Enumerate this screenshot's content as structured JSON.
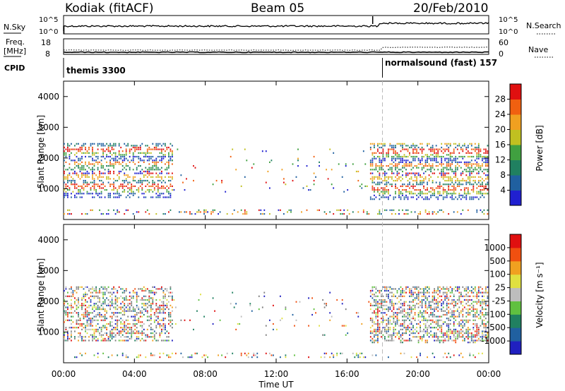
{
  "header": {
    "station": "Kodiak (fitACF)",
    "beam": "Beam 05",
    "date": "20/Feb/2010"
  },
  "top_panel": {
    "left_label": "N.Sky",
    "left_ticks": [
      "10^5",
      "10^0"
    ],
    "right_label": "N.Search",
    "right_ticks": [
      "10^5",
      "10^0"
    ]
  },
  "freq_panel": {
    "left_label_1": "Freq.",
    "left_label_2": "[MHz]",
    "left_ticks": [
      "18",
      "8"
    ],
    "right_label": "Nave",
    "right_ticks": [
      "60",
      "0"
    ]
  },
  "cpid_panel": {
    "label": "CPID",
    "segments": [
      {
        "name": "themis 3300",
        "start_hour": 0
      },
      {
        "name": "normalsound (fast) 157",
        "start_hour": 18
      }
    ]
  },
  "x_axis": {
    "label": "Time UT",
    "ticks": [
      "00:00",
      "04:00",
      "08:00",
      "12:00",
      "16:00",
      "20:00",
      "00:00"
    ],
    "range_hours": [
      0,
      24
    ]
  },
  "colors": {
    "power_scale": [
      "#2020d0",
      "#2060a0",
      "#208060",
      "#40a040",
      "#c0c020",
      "#f0a020",
      "#f06010",
      "#e01010"
    ],
    "velocity_scale": [
      "#e01010",
      "#f05010",
      "#f0a020",
      "#e0e040",
      "#bdbdbd",
      "#60c040",
      "#208060",
      "#2060a0",
      "#2020c0"
    ],
    "ground_scatter": "#808080",
    "axis": "#000000"
  },
  "chart_data": [
    {
      "type": "heatmap",
      "name": "power",
      "ylabel": "Slant Range [km]",
      "yticks": [
        "1000",
        "2000",
        "3000",
        "4000"
      ],
      "ylim": [
        0,
        4500
      ],
      "xlim": [
        0,
        24
      ],
      "colorbar": {
        "label": "Power [dB]",
        "ticks": [
          "4",
          "8",
          "12",
          "16",
          "20",
          "24",
          "28"
        ]
      },
      "scatter_regions": [
        {
          "t0": 0.0,
          "t1": 6.1,
          "r0": 700,
          "r1": 2500,
          "density": 0.55
        },
        {
          "t0": 17.3,
          "t1": 24.0,
          "r0": 650,
          "r1": 2500,
          "density": 0.6
        },
        {
          "t0": 6.1,
          "t1": 17.3,
          "r0": 900,
          "r1": 2300,
          "density": 0.03
        },
        {
          "t0": 0.0,
          "t1": 24.0,
          "r0": 180,
          "r1": 350,
          "density": 0.25
        }
      ]
    },
    {
      "type": "heatmap",
      "name": "velocity",
      "ylabel": "Slant Range [km]",
      "yticks": [
        "1000",
        "2000",
        "3000",
        "4000"
      ],
      "ylim": [
        0,
        4500
      ],
      "xlim": [
        0,
        24
      ],
      "colorbar": {
        "label": "Velocity [m s⁻¹]",
        "ticks": [
          "1000",
          "500",
          "100",
          "25",
          "-25",
          "-100",
          "-500",
          "-1000"
        ]
      },
      "scatter_regions": [
        {
          "t0": 0.0,
          "t1": 6.1,
          "r0": 700,
          "r1": 2500,
          "density": 0.55
        },
        {
          "t0": 17.3,
          "t1": 24.0,
          "r0": 650,
          "r1": 2500,
          "density": 0.6
        },
        {
          "t0": 6.1,
          "t1": 17.3,
          "r0": 900,
          "r1": 2300,
          "density": 0.03
        },
        {
          "t0": 0.0,
          "t1": 24.0,
          "r0": 180,
          "r1": 350,
          "density": 0.2
        }
      ]
    }
  ]
}
